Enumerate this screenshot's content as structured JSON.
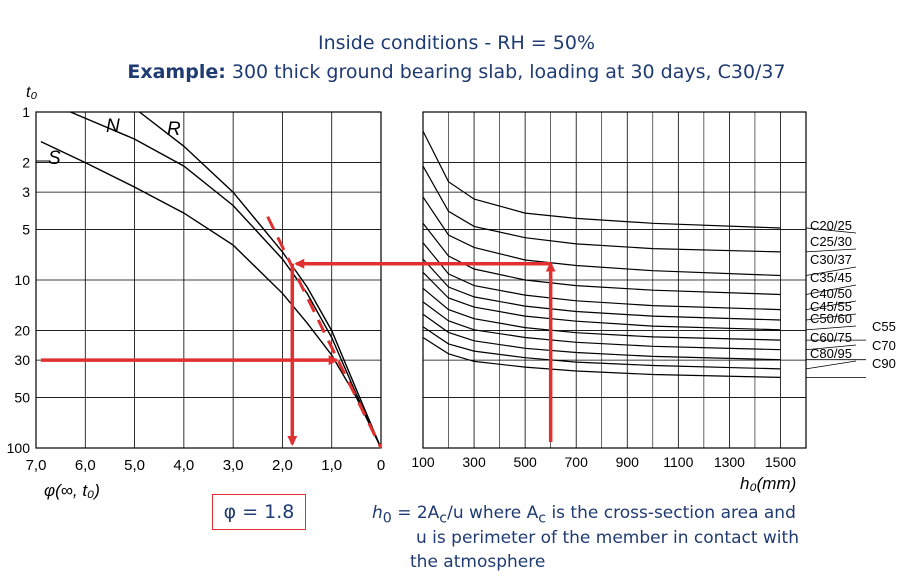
{
  "title": "Inside conditions - RH = 50%",
  "subtitle": {
    "bold": "Example:",
    "rest": " 300 thick ground bearing slab, loading at 30 days, C30/37"
  },
  "result_label": "φ = 1.8",
  "note": {
    "line1_prefix": "h",
    "line1_sub": "0",
    "line1_mid": " = 2A",
    "line1_sub2": "c",
    "line1_mid2": "/u  where A",
    "line1_sub3": "c",
    "line1_rest": " is the cross-section area and",
    "line2": "u is perimeter of the member in contact with",
    "line3": "the atmosphere"
  },
  "colors": {
    "title": "#1f3b73",
    "annotation": "#e03030",
    "curve": "#000000"
  },
  "chart_data": [
    {
      "type": "line",
      "panel": "left",
      "ylabel": "t₀",
      "xlabel": "φ(∞, t₀)",
      "x_axis_reversed": true,
      "y_scale": "log",
      "xlim": [
        7.0,
        0
      ],
      "ylim": [
        1,
        100
      ],
      "x_ticks": [
        "7,0",
        "6,0",
        "5,0",
        "4,0",
        "3,0",
        "2,0",
        "1,0",
        "0"
      ],
      "y_ticks": [
        "1",
        "2",
        "3",
        "5",
        "10",
        "20",
        "30",
        "50",
        "100"
      ],
      "grid": true,
      "series": [
        {
          "name": "S",
          "points": [
            [
              6.9,
              1.5
            ],
            [
              6.0,
              2.0
            ],
            [
              5.0,
              2.8
            ],
            [
              4.0,
              4.0
            ],
            [
              3.0,
              6.2
            ],
            [
              2.0,
              12
            ],
            [
              1.5,
              18
            ],
            [
              1.0,
              28
            ],
            [
              0.5,
              50
            ],
            [
              0,
              100
            ]
          ]
        },
        {
          "name": "N",
          "points": [
            [
              6.3,
              1.0
            ],
            [
              5.0,
              1.45
            ],
            [
              4.0,
              2.1
            ],
            [
              3.0,
              3.6
            ],
            [
              2.0,
              7.5
            ],
            [
              1.5,
              12
            ],
            [
              1.0,
              22
            ],
            [
              0.5,
              48
            ],
            [
              0,
              100
            ]
          ]
        },
        {
          "name": "R",
          "points": [
            [
              4.9,
              1.0
            ],
            [
              4.0,
              1.6
            ],
            [
              3.0,
              3.0
            ],
            [
              2.0,
              6.8
            ],
            [
              1.5,
              11
            ],
            [
              1.0,
              20
            ],
            [
              0.5,
              45
            ],
            [
              0,
              100
            ]
          ]
        }
      ],
      "annotations": {
        "dashed_tangent": [
          [
            2.3,
            4.2
          ],
          [
            0,
            100
          ]
        ],
        "arrow_in": {
          "from": [
            6.9,
            30
          ],
          "to": [
            0.9,
            30
          ]
        },
        "arrow_down": {
          "at_phi": 1.8,
          "from_t0": 8,
          "to_t0": 100
        }
      }
    },
    {
      "type": "line",
      "panel": "right",
      "xlabel": "h₀(mm)",
      "xlim": [
        100,
        1600
      ],
      "x_ticks": [
        "100",
        "300",
        "500",
        "700",
        "900",
        "1100",
        "1300",
        "1500"
      ],
      "y_scale": "log",
      "ylim": [
        1,
        100
      ],
      "grid": true,
      "series": [
        {
          "name": "C20/25",
          "points": [
            [
              100,
              1.3
            ],
            [
              200,
              2.6
            ],
            [
              300,
              3.3
            ],
            [
              500,
              4.0
            ],
            [
              700,
              4.3
            ],
            [
              1000,
              4.6
            ],
            [
              1500,
              4.9
            ]
          ]
        },
        {
          "name": "C25/30",
          "points": [
            [
              100,
              2.1
            ],
            [
              200,
              3.9
            ],
            [
              300,
              4.8
            ],
            [
              500,
              5.6
            ],
            [
              700,
              6.1
            ],
            [
              1000,
              6.5
            ],
            [
              1500,
              6.8
            ]
          ]
        },
        {
          "name": "C30/37",
          "points": [
            [
              100,
              3.2
            ],
            [
              200,
              5.4
            ],
            [
              300,
              6.4
            ],
            [
              500,
              7.6
            ],
            [
              700,
              8.2
            ],
            [
              1000,
              8.8
            ],
            [
              1500,
              9.4
            ]
          ]
        },
        {
          "name": "C35/45",
          "points": [
            [
              100,
              4.6
            ],
            [
              200,
              7.2
            ],
            [
              300,
              8.6
            ],
            [
              500,
              10.0
            ],
            [
              700,
              10.8
            ],
            [
              1000,
              11.5
            ],
            [
              1500,
              12.2
            ]
          ]
        },
        {
          "name": "C40/50",
          "points": [
            [
              100,
              6.0
            ],
            [
              200,
              9.2
            ],
            [
              300,
              10.8
            ],
            [
              500,
              12.3
            ],
            [
              700,
              13.3
            ],
            [
              1000,
              14.2
            ],
            [
              1500,
              15.0
            ]
          ]
        },
        {
          "name": "C45/55",
          "points": [
            [
              100,
              7.5
            ],
            [
              200,
              11.0
            ],
            [
              300,
              12.6
            ],
            [
              500,
              14.3
            ],
            [
              700,
              15.4
            ],
            [
              1000,
              16.4
            ],
            [
              1500,
              17.3
            ]
          ]
        },
        {
          "name": "C50/60",
          "points": [
            [
              100,
              9.0
            ],
            [
              200,
              12.8
            ],
            [
              300,
              14.5
            ],
            [
              500,
              16.4
            ],
            [
              700,
              17.6
            ],
            [
              1000,
              18.8
            ],
            [
              1500,
              19.8
            ]
          ]
        },
        {
          "name": "C55/67",
          "points": [
            [
              100,
              11.2
            ],
            [
              200,
              15.0
            ],
            [
              300,
              17.0
            ],
            [
              500,
              19.2
            ],
            [
              700,
              20.6
            ],
            [
              1000,
              21.8
            ],
            [
              1500,
              22.8
            ]
          ]
        },
        {
          "name": "C60/75",
          "points": [
            [
              100,
              13.5
            ],
            [
              200,
              17.5
            ],
            [
              300,
              19.8
            ],
            [
              500,
              22.0
            ],
            [
              700,
              23.5
            ],
            [
              1000,
              24.8
            ],
            [
              1500,
              26.0
            ]
          ]
        },
        {
          "name": "C70/85",
          "points": [
            [
              100,
              16.0
            ],
            [
              200,
              20.5
            ],
            [
              300,
              23.0
            ],
            [
              500,
              25.5
            ],
            [
              700,
              27.0
            ],
            [
              1000,
              28.5
            ],
            [
              1500,
              29.8
            ]
          ]
        },
        {
          "name": "C80/95",
          "points": [
            [
              100,
              19.0
            ],
            [
              200,
              24.0
            ],
            [
              300,
              26.5
            ],
            [
              500,
              29.0
            ],
            [
              700,
              30.8
            ],
            [
              1000,
              32.3
            ],
            [
              1500,
              33.8
            ]
          ]
        },
        {
          "name": "C90/105",
          "points": [
            [
              100,
              22.0
            ],
            [
              200,
              27.5
            ],
            [
              300,
              30.5
            ],
            [
              500,
              33.0
            ],
            [
              700,
              34.8
            ],
            [
              1000,
              36.5
            ],
            [
              1500,
              38.0
            ]
          ]
        }
      ],
      "labels_display": [
        {
          "text": "C20/25",
          "col": "inner"
        },
        {
          "text": "C25/30",
          "col": "inner"
        },
        {
          "text": "C30/37",
          "col": "inner"
        },
        {
          "text": "C35/45",
          "col": "inner"
        },
        {
          "text": "C40/50",
          "col": "inner"
        },
        {
          "text": "C45/55",
          "col": "inner"
        },
        {
          "text": "C50/60",
          "col": "inner"
        },
        {
          "text": "C55",
          "col": "outer"
        },
        {
          "text": "C60/75",
          "col": "inner"
        },
        {
          "text": "C70",
          "col": "outer"
        },
        {
          "text": "C80/95",
          "col": "inner"
        },
        {
          "text": "C90",
          "col": "outer"
        }
      ],
      "annotations": {
        "arrow_up": {
          "at_h0": 600,
          "from_t0": 100,
          "to_curve": "C30/37"
        },
        "arrow_left": {
          "at_t0": 8
        }
      }
    }
  ]
}
